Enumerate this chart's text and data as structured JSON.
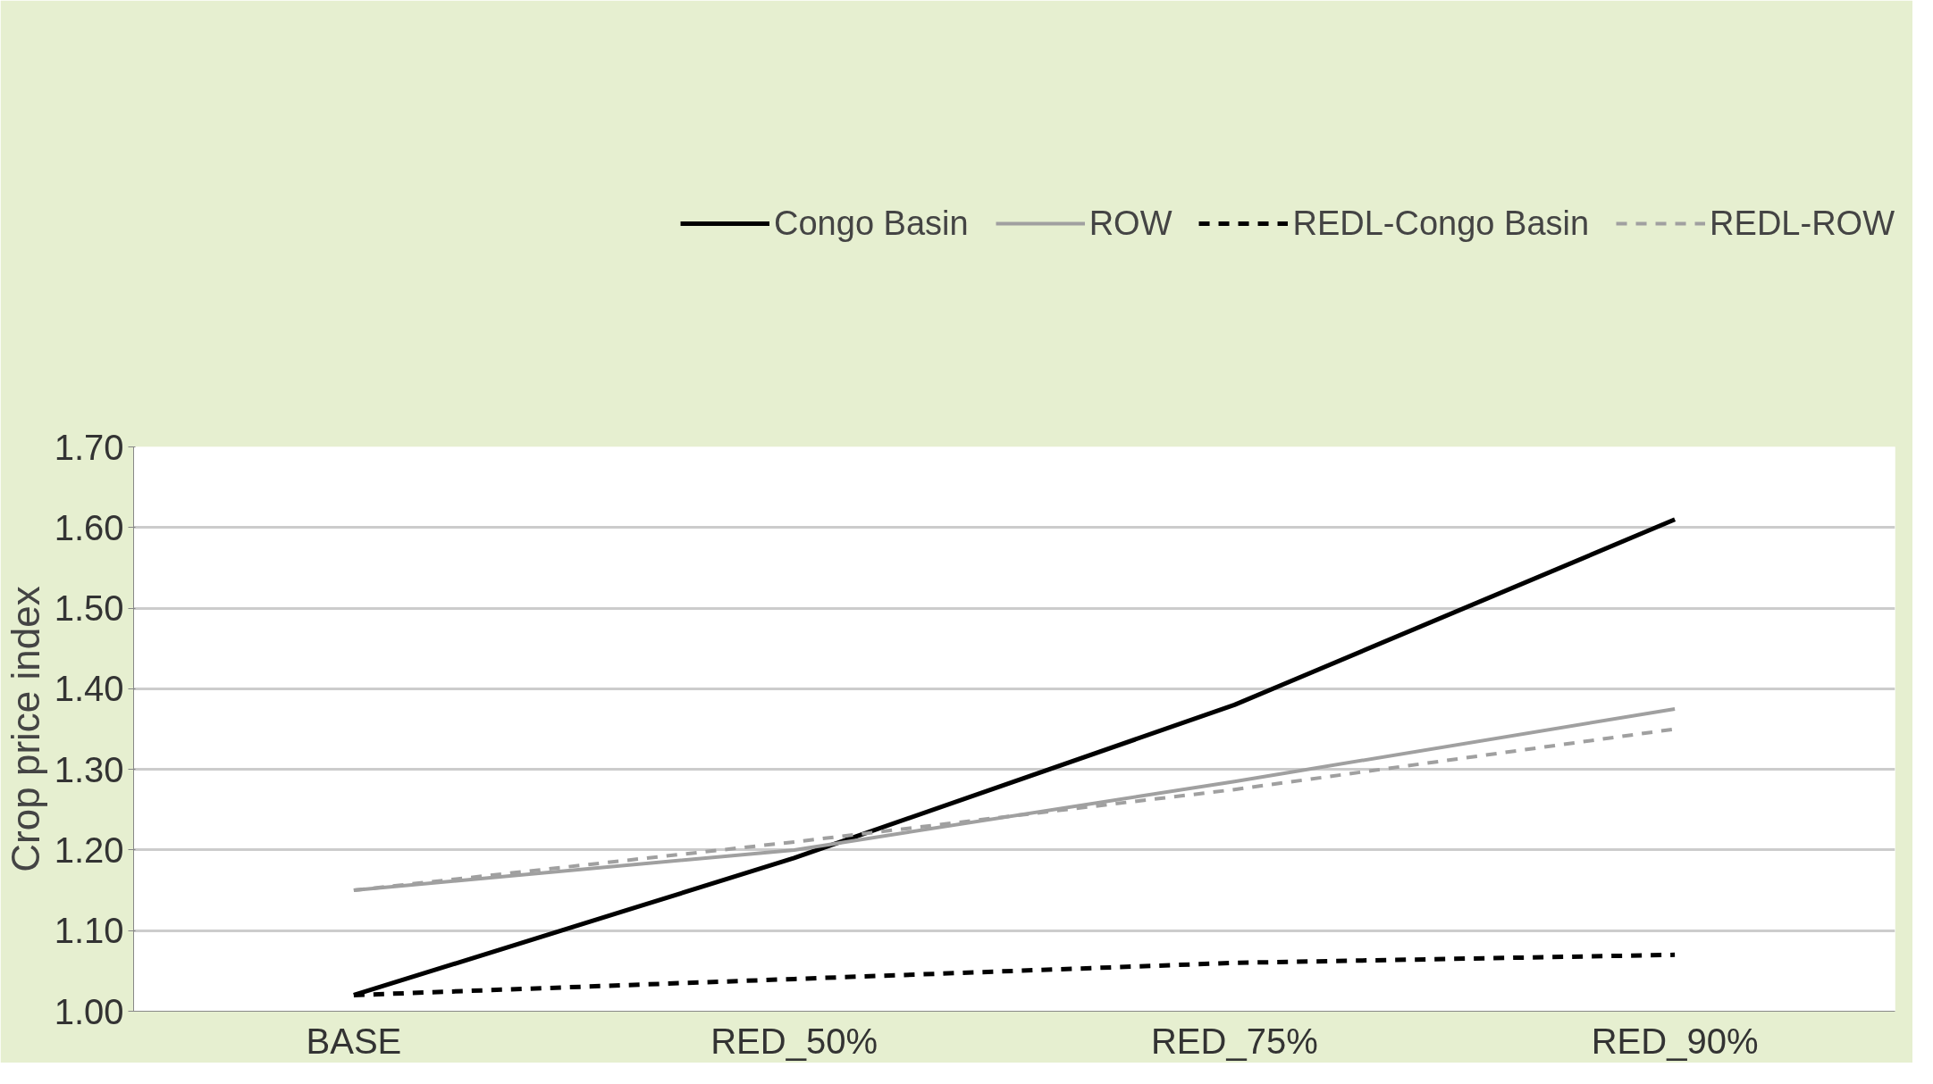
{
  "chart_data": {
    "type": "line",
    "ylabel": "Crop price index",
    "categories": [
      "BASE",
      "RED_50%",
      "RED_75%",
      "RED_90%"
    ],
    "series": [
      {
        "name": "Congo Basin",
        "color": "#000000",
        "line_style": "solid",
        "values": [
          1.02,
          1.19,
          1.38,
          1.61
        ]
      },
      {
        "name": "ROW",
        "color": "#a0a0a0",
        "line_style": "solid",
        "values": [
          1.15,
          1.2,
          1.285,
          1.375
        ]
      },
      {
        "name": "REDL-Congo Basin",
        "color": "#000000",
        "line_style": "dashed",
        "values": [
          1.02,
          1.04,
          1.06,
          1.07
        ]
      },
      {
        "name": "REDL-ROW",
        "color": "#a0a0a0",
        "line_style": "dashed",
        "values": [
          1.15,
          1.21,
          1.275,
          1.35
        ]
      }
    ],
    "ylim": [
      1.0,
      1.7
    ],
    "yticks": [
      {
        "value": 1.0,
        "label": "1.00"
      },
      {
        "value": 1.1,
        "label": "1.10"
      },
      {
        "value": 1.2,
        "label": "1.20"
      },
      {
        "value": 1.3,
        "label": "1.30"
      },
      {
        "value": 1.4,
        "label": "1.40"
      },
      {
        "value": 1.5,
        "label": "1.50"
      },
      {
        "value": 1.6,
        "label": "1.60"
      },
      {
        "value": 1.7,
        "label": "1.70"
      }
    ],
    "grid": "y",
    "legend": "top",
    "marker": "none"
  }
}
